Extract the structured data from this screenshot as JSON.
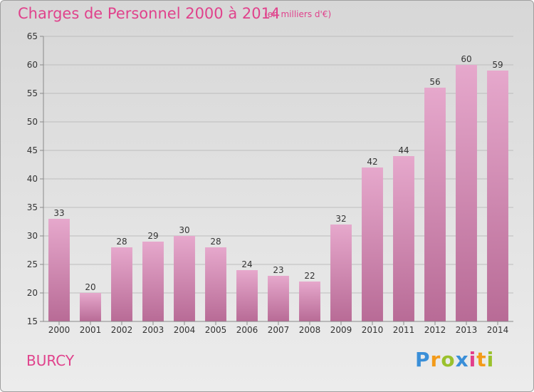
{
  "header": {
    "title": "Charges de Personnel 2000 à 2014",
    "unit": "(en milliers d'€)"
  },
  "footer": {
    "commune": "BURCY",
    "logo": {
      "letters": [
        "P",
        "r",
        "o",
        "x",
        "i",
        "t",
        "i"
      ],
      "colors": [
        "#3a8fd8",
        "#f39b1a",
        "#9ac12c",
        "#3a8fd8",
        "#e23e8b",
        "#f39b1a",
        "#9ac12c"
      ]
    }
  },
  "chart_data": {
    "type": "bar",
    "title": "Charges de Personnel 2000 à 2014",
    "subtitle": "(en milliers d'€)",
    "xlabel": "",
    "ylabel": "",
    "categories": [
      "2000",
      "2001",
      "2002",
      "2003",
      "2004",
      "2005",
      "2006",
      "2007",
      "2008",
      "2009",
      "2010",
      "2011",
      "2012",
      "2013",
      "2014"
    ],
    "values": [
      33,
      20,
      28,
      29,
      30,
      28,
      24,
      23,
      22,
      32,
      42,
      44,
      56,
      60,
      59
    ],
    "ylim": [
      15,
      65
    ],
    "yticks": [
      15,
      20,
      25,
      30,
      35,
      40,
      45,
      50,
      55,
      60,
      65
    ],
    "grid": true,
    "bar_color_top": "#e6a8cc",
    "bar_color_bottom": "#b86b96",
    "axis_color": "#8a8a8a",
    "grid_color": "#bdbdbd",
    "data_labels": true
  }
}
